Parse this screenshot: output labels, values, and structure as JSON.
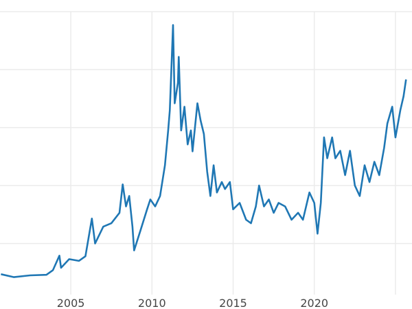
{
  "chart_data": {
    "type": "line",
    "title": "",
    "xlabel": "",
    "ylabel": "",
    "xlim": [
      2000.64,
      2025.68
    ],
    "ylim": [
      0,
      50
    ],
    "x_ticks": [
      2005,
      2010,
      2015,
      2020,
      2025
    ],
    "x_tick_labels": [
      "2005",
      "2010",
      "2015",
      "2020",
      ""
    ],
    "y_ticks": [
      10,
      20,
      30,
      40,
      50
    ],
    "grid": true,
    "legend": "none",
    "line_color": "#1f77b4",
    "series": [
      {
        "x": [
          2000.7,
          2001.5,
          2002.5,
          2003.5,
          2003.9,
          2004.3,
          2004.4,
          2004.9,
          2005.5,
          2005.9,
          2006.3,
          2006.5,
          2007.0,
          2007.5,
          2008.0,
          2008.2,
          2008.4,
          2008.6,
          2008.8,
          2008.9,
          2009.3,
          2009.7,
          2009.9,
          2010.2,
          2010.5,
          2010.8,
          2011.0,
          2011.1,
          2011.3,
          2011.4,
          2011.6,
          2011.65,
          2011.8,
          2012.0,
          2012.2,
          2012.4,
          2012.5,
          2012.8,
          2013.0,
          2013.2,
          2013.4,
          2013.6,
          2013.8,
          2014.0,
          2014.3,
          2014.5,
          2014.8,
          2015.0,
          2015.4,
          2015.8,
          2016.1,
          2016.4,
          2016.6,
          2016.9,
          2017.2,
          2017.5,
          2017.8,
          2018.2,
          2018.6,
          2019.0,
          2019.3,
          2019.7,
          2020.0,
          2020.2,
          2020.4,
          2020.6,
          2020.8,
          2021.1,
          2021.3,
          2021.6,
          2021.9,
          2022.2,
          2022.5,
          2022.8,
          2023.1,
          2023.4,
          2023.7,
          2024.0,
          2024.3,
          2024.5,
          2024.8,
          2025.0,
          2025.3,
          2025.5,
          2025.65
        ],
        "y": [
          4.7,
          4.2,
          4.5,
          4.6,
          5.4,
          7.9,
          5.8,
          7.3,
          7.0,
          7.8,
          14.3,
          10.0,
          12.9,
          13.5,
          15.3,
          20.2,
          16.4,
          18.2,
          12.9,
          8.8,
          12.3,
          15.9,
          17.6,
          16.4,
          18.2,
          23.5,
          29.5,
          33.0,
          47.7,
          34.2,
          37.7,
          42.2,
          29.5,
          33.6,
          27.1,
          29.5,
          25.9,
          34.2,
          31.2,
          28.9,
          22.4,
          18.2,
          23.5,
          18.8,
          20.6,
          19.4,
          20.6,
          15.9,
          17.0,
          14.1,
          13.5,
          16.4,
          20.0,
          16.4,
          17.6,
          15.3,
          17.0,
          16.4,
          14.1,
          15.3,
          14.1,
          18.8,
          17.0,
          11.7,
          17.0,
          28.3,
          24.7,
          28.3,
          24.7,
          26.0,
          21.8,
          26.0,
          20.0,
          18.2,
          23.5,
          20.6,
          24.1,
          21.8,
          26.5,
          30.7,
          33.6,
          28.3,
          33.0,
          35.4,
          38.3
        ]
      }
    ]
  }
}
